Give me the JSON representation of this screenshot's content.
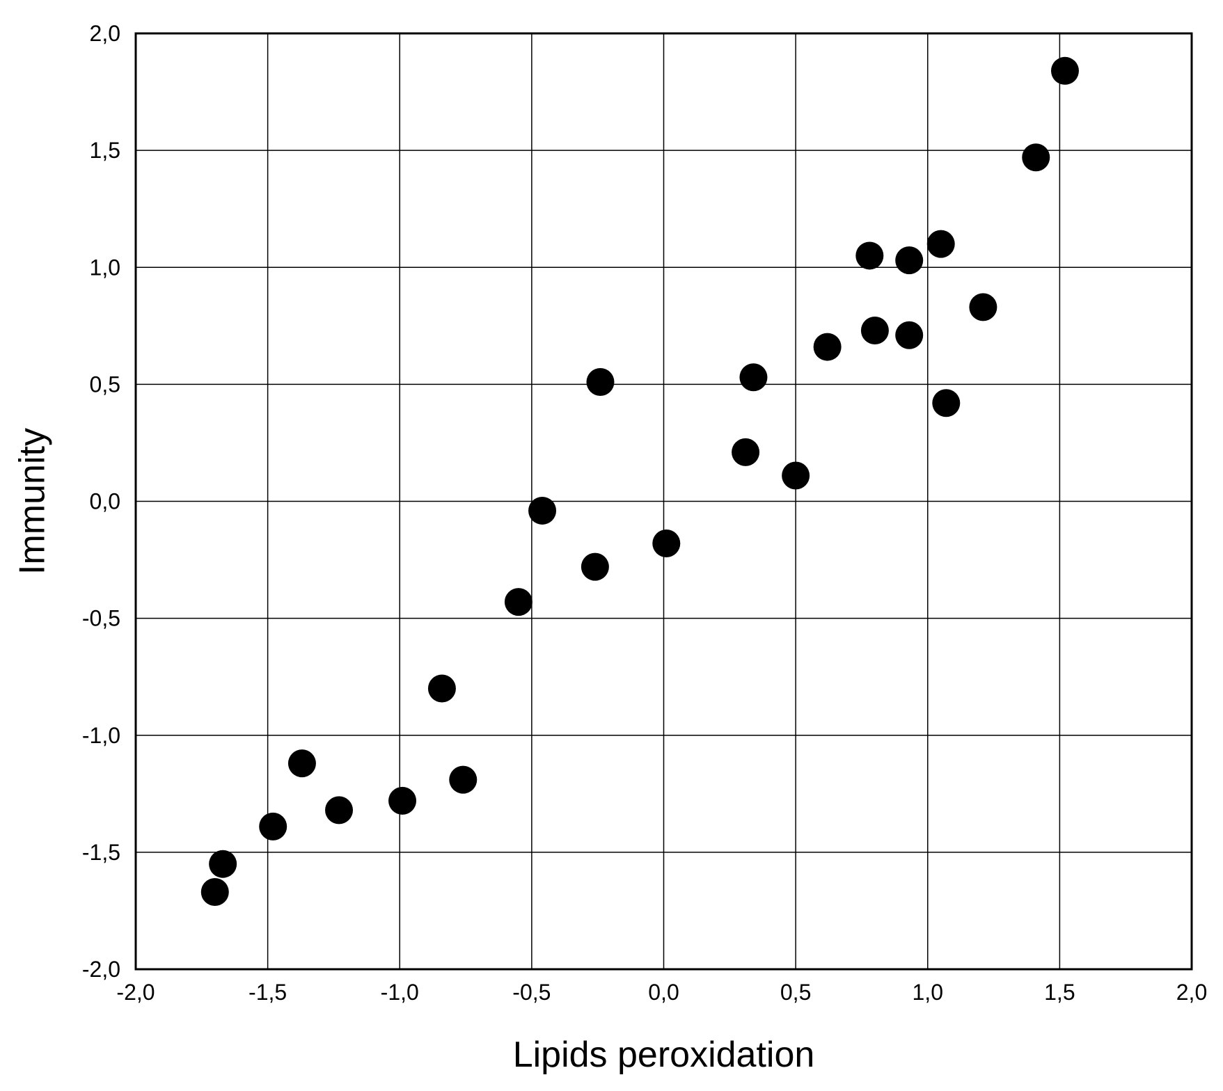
{
  "chart_data": {
    "type": "scatter",
    "title": "",
    "xlabel": "Lipids peroxidation",
    "ylabel": "Immunity",
    "xlim": [
      -2.0,
      2.0
    ],
    "ylim": [
      -2.0,
      2.0
    ],
    "xticks": [
      -2.0,
      -1.5,
      -1.0,
      -0.5,
      0.0,
      0.5,
      1.0,
      1.5,
      2.0
    ],
    "yticks": [
      -2.0,
      -1.5,
      -1.0,
      -0.5,
      0.0,
      0.5,
      1.0,
      1.5,
      2.0
    ],
    "xtick_labels": [
      "-2,0",
      "-1,5",
      "-1,0",
      "-0,5",
      "0,0",
      "0,5",
      "1,0",
      "1,5",
      "2,0"
    ],
    "ytick_labels": [
      "-2,0",
      "-1,5",
      "-1,0",
      "-0,5",
      "0,0",
      "0,5",
      "1,0",
      "1,5",
      "2,0"
    ],
    "grid": true,
    "marker_color": "#000000",
    "series": [
      {
        "points": [
          {
            "x": -1.7,
            "y": -1.67
          },
          {
            "x": -1.67,
            "y": -1.55
          },
          {
            "x": -1.48,
            "y": -1.39
          },
          {
            "x": -1.37,
            "y": -1.12
          },
          {
            "x": -1.23,
            "y": -1.32
          },
          {
            "x": -0.99,
            "y": -1.28
          },
          {
            "x": -0.84,
            "y": -0.8
          },
          {
            "x": -0.76,
            "y": -1.19
          },
          {
            "x": -0.55,
            "y": -0.43
          },
          {
            "x": -0.46,
            "y": -0.04
          },
          {
            "x": -0.26,
            "y": -0.28
          },
          {
            "x": -0.24,
            "y": 0.51
          },
          {
            "x": 0.01,
            "y": -0.18
          },
          {
            "x": 0.31,
            "y": 0.21
          },
          {
            "x": 0.34,
            "y": 0.53
          },
          {
            "x": 0.5,
            "y": 0.11
          },
          {
            "x": 0.62,
            "y": 0.66
          },
          {
            "x": 0.78,
            "y": 1.05
          },
          {
            "x": 0.8,
            "y": 0.73
          },
          {
            "x": 0.93,
            "y": 1.03
          },
          {
            "x": 0.93,
            "y": 0.71
          },
          {
            "x": 1.05,
            "y": 1.1
          },
          {
            "x": 1.07,
            "y": 0.42
          },
          {
            "x": 1.21,
            "y": 0.83
          },
          {
            "x": 1.41,
            "y": 1.47
          },
          {
            "x": 1.52,
            "y": 1.84
          }
        ]
      }
    ]
  }
}
